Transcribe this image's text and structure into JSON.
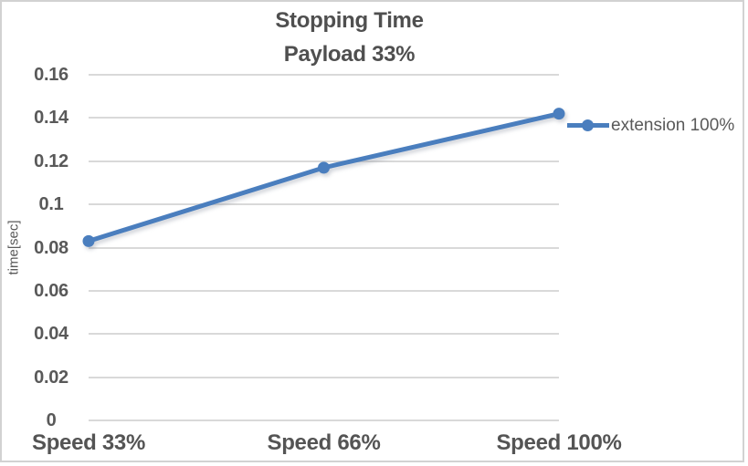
{
  "chart_data": {
    "type": "line",
    "title": "Stopping Time",
    "subtitle": "Payload 33%",
    "categories": [
      "Speed 33%",
      "Speed 66%",
      "Speed 100%"
    ],
    "series": [
      {
        "name": "extension 100%",
        "values": [
          0.083,
          0.117,
          0.142
        ]
      }
    ],
    "xlabel": "",
    "ylabel": "time[sec]",
    "ylim": [
      0,
      0.16
    ],
    "yticks": [
      {
        "value": 0,
        "label": "0"
      },
      {
        "value": 0.02,
        "label": "0.02"
      },
      {
        "value": 0.04,
        "label": "0.04"
      },
      {
        "value": 0.06,
        "label": "0.06"
      },
      {
        "value": 0.08,
        "label": "0.08"
      },
      {
        "value": 0.1,
        "label": "0.1"
      },
      {
        "value": 0.12,
        "label": "0.12"
      },
      {
        "value": 0.14,
        "label": "0.14"
      },
      {
        "value": 0.16,
        "label": "0.16"
      }
    ],
    "grid": true,
    "legend_position": "right"
  },
  "colors": {
    "series": "#4A7EBE",
    "gridline": "#D9D9D9",
    "text": "#595959",
    "title": "#4F4F4F",
    "frame_border": "#D2D2D2"
  }
}
